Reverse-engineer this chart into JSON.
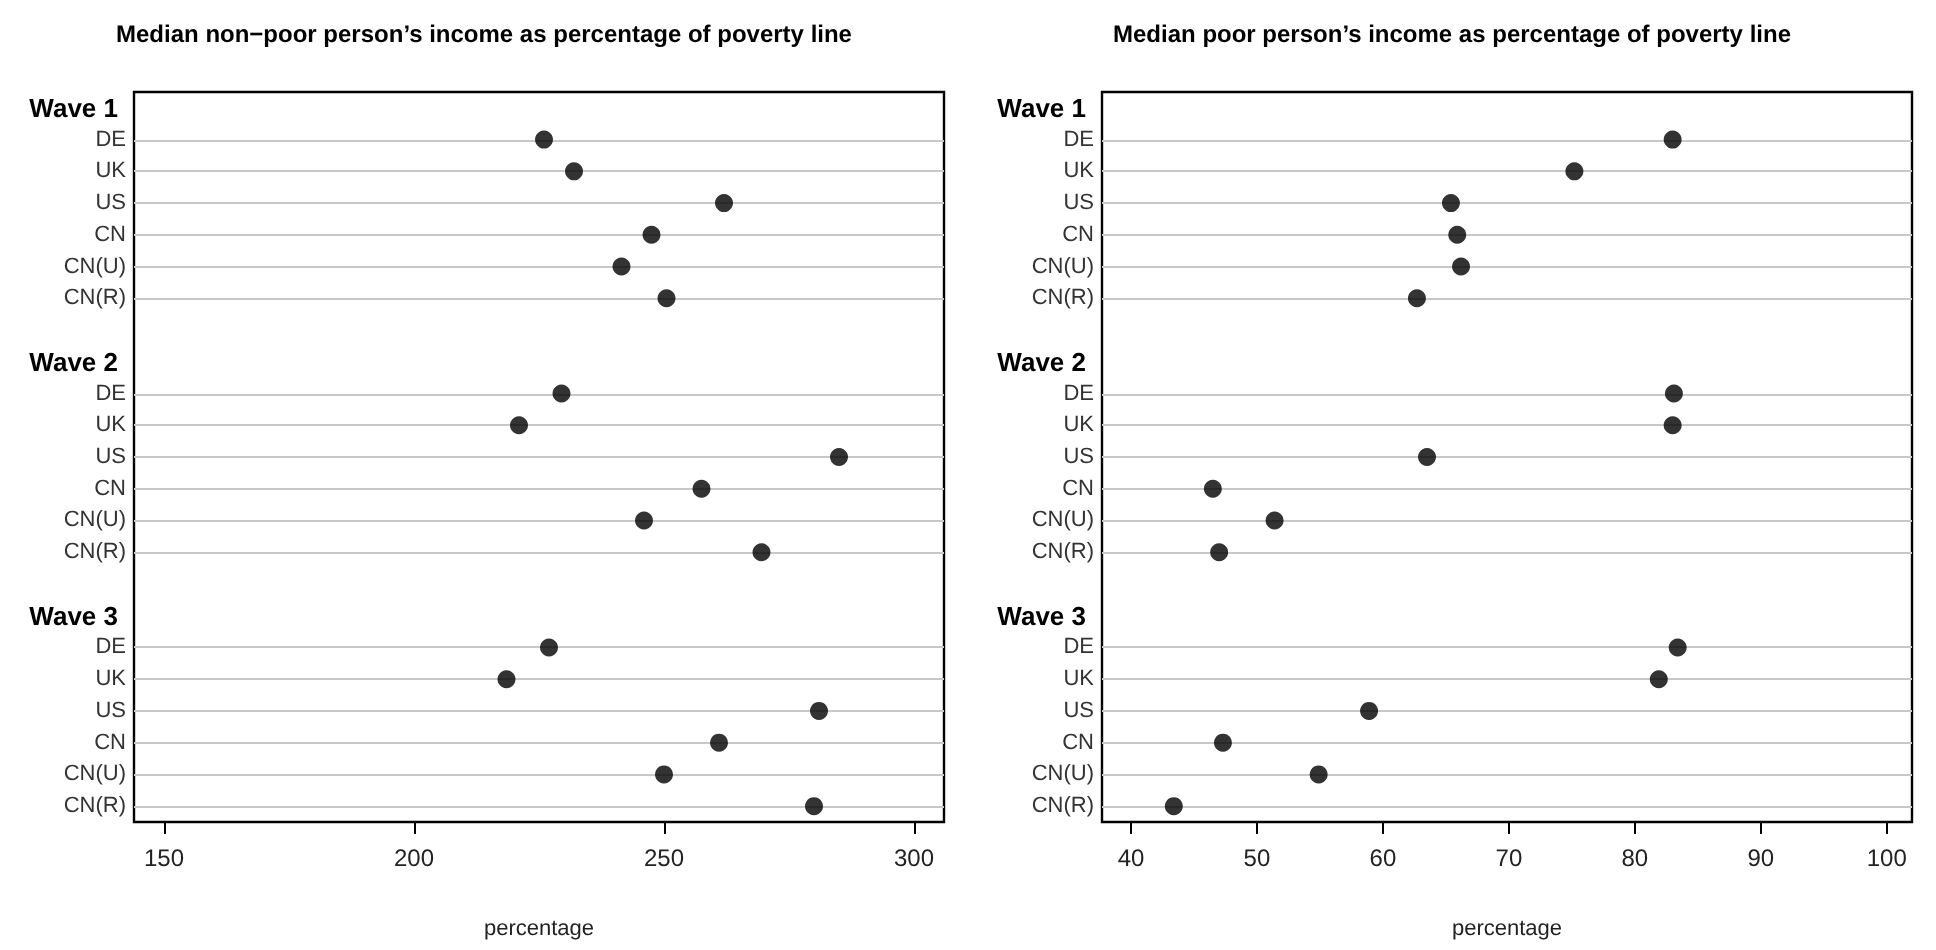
{
  "chart_data": [
    {
      "type": "scatter",
      "orientation": "horizontal",
      "title": "Median non−poor person’s income as percentage of poverty line",
      "xlabel": "percentage",
      "categories": [
        "Wave 1",
        "DE",
        "UK",
        "US",
        "CN",
        "CN(U)",
        "CN(R)",
        null,
        "Wave 2",
        "DE",
        "UK",
        "US",
        "CN",
        "CN(U)",
        "CN(R)",
        null,
        "Wave 3",
        "DE",
        "UK",
        "US",
        "CN",
        "CN(U)",
        "CN(R)"
      ],
      "values": [
        null,
        226,
        232,
        262,
        247.5,
        241.5,
        250.5,
        null,
        null,
        229.5,
        221,
        285,
        257.5,
        246,
        269.5,
        null,
        null,
        227,
        218.5,
        281,
        261,
        250,
        280
      ],
      "color": "#000000",
      "marker": "circle",
      "grid": "y",
      "xlim": [
        144,
        306
      ],
      "xticks": [
        150,
        200,
        250,
        300
      ]
    },
    {
      "type": "scatter",
      "orientation": "horizontal",
      "title": "Median poor person’s income as percentage of poverty line",
      "xlabel": "percentage",
      "categories": [
        "Wave 1",
        "DE",
        "UK",
        "US",
        "CN",
        "CN(U)",
        "CN(R)",
        null,
        "Wave 2",
        "DE",
        "UK",
        "US",
        "CN",
        "CN(U)",
        "CN(R)",
        null,
        "Wave 3",
        "DE",
        "UK",
        "US",
        "CN",
        "CN(U)",
        "CN(R)"
      ],
      "values": [
        null,
        83,
        75.2,
        65.4,
        65.9,
        66.2,
        62.7,
        null,
        null,
        83.1,
        83,
        63.5,
        46.5,
        51.4,
        47,
        null,
        null,
        83.4,
        81.9,
        58.9,
        47.3,
        54.9,
        43.4
      ],
      "color": "#000000",
      "marker": "circle",
      "grid": "y",
      "xlim": [
        37.7,
        102
      ],
      "xticks": [
        40,
        50,
        60,
        70,
        80,
        90,
        100
      ]
    }
  ]
}
